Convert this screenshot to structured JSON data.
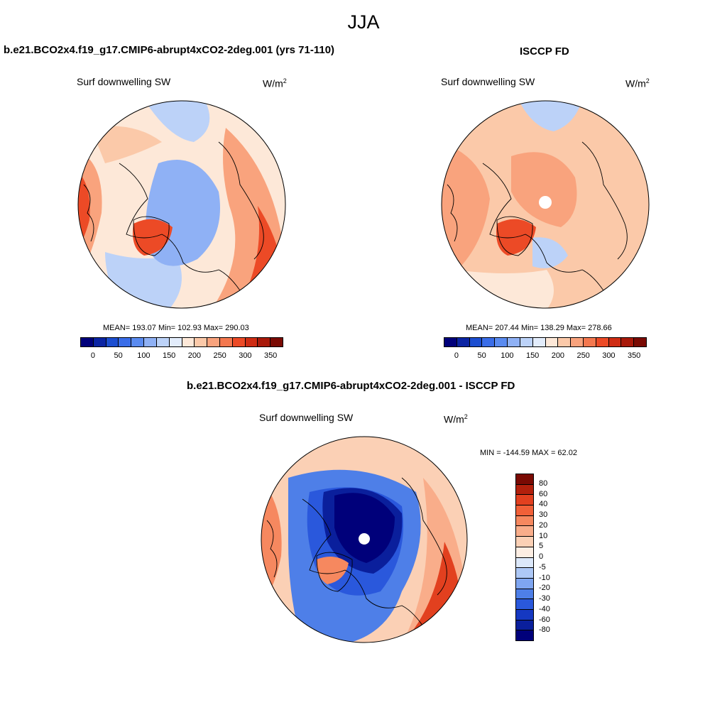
{
  "figure": {
    "main_title": "JJA"
  },
  "panels": {
    "model": {
      "title": "b.e21.BCO2x4.f19_g17.CMIP6-abrupt4xCO2-2deg.001 (yrs 71-110)",
      "variable": "Surf downwelling SW",
      "units_base": "W/m",
      "units_exp": "2",
      "stats": "MEAN= 193.07  Min= 102.93  Max= 290.03"
    },
    "obs": {
      "title": "ISCCP FD",
      "variable": "Surf downwelling SW",
      "units_base": "W/m",
      "units_exp": "2",
      "stats": "MEAN= 207.44  Min= 138.29  Max= 278.66"
    },
    "diff": {
      "title": "b.e21.BCO2x4.f19_g17.CMIP6-abrupt4xCO2-2deg.001 - ISCCP FD",
      "variable": "Surf downwelling SW",
      "units_base": "W/m",
      "units_exp": "2",
      "stats": "MIN = -144.59 MAX =  62.02"
    }
  },
  "chart_data": [
    {
      "type": "map",
      "projection": "north-polar-stereographic",
      "title": "b.e21.BCO2x4.f19_g17.CMIP6-abrupt4xCO2-2deg.001 (yrs 71-110)",
      "variable": "Surf downwelling SW",
      "units": "W/m2",
      "mean": 193.07,
      "min": 102.93,
      "max": 290.03,
      "colorbar_ticks": [
        "0",
        "50",
        "100",
        "150",
        "200",
        "250",
        "300",
        "350"
      ],
      "colorbar_colors": [
        "#00007a",
        "#0b24a3",
        "#1c4ed0",
        "#3a6de8",
        "#5a8bf0",
        "#8fb1f5",
        "#bcd2f8",
        "#e2ecfb",
        "#fde8d8",
        "#fbc9a9",
        "#f9a37d",
        "#f4784f",
        "#ec4a26",
        "#cf2c13",
        "#a8190a",
        "#7a0a03"
      ]
    },
    {
      "type": "map",
      "projection": "north-polar-stereographic",
      "title": "ISCCP FD",
      "variable": "Surf downwelling SW",
      "units": "W/m2",
      "mean": 207.44,
      "min": 138.29,
      "max": 278.66,
      "colorbar_ticks": [
        "0",
        "50",
        "100",
        "150",
        "200",
        "250",
        "300",
        "350"
      ],
      "colorbar_colors": [
        "#00007a",
        "#0b24a3",
        "#1c4ed0",
        "#3a6de8",
        "#5a8bf0",
        "#8fb1f5",
        "#bcd2f8",
        "#e2ecfb",
        "#fde8d8",
        "#fbc9a9",
        "#f9a37d",
        "#f4784f",
        "#ec4a26",
        "#cf2c13",
        "#a8190a",
        "#7a0a03"
      ]
    },
    {
      "type": "map",
      "projection": "north-polar-stereographic",
      "title": "b.e21.BCO2x4.f19_g17.CMIP6-abrupt4xCO2-2deg.001 - ISCCP FD",
      "variable": "Surf downwelling SW",
      "units": "W/m2",
      "min": -144.59,
      "max": 62.02,
      "colorbar_ticks": [
        "80",
        "60",
        "40",
        "30",
        "20",
        "10",
        "5",
        "0",
        "-5",
        "-10",
        "-20",
        "-30",
        "-40",
        "-60",
        "-80"
      ],
      "colorbar_colors": [
        "#7a0a03",
        "#b2200c",
        "#e2401f",
        "#f16038",
        "#f6885f",
        "#f9ad8a",
        "#fbd0b5",
        "#fdeee3",
        "#dce8fa",
        "#adc8f6",
        "#7fa6f1",
        "#4e7fe8",
        "#2a58dc",
        "#1538c2",
        "#0a1f9c",
        "#00007a"
      ]
    }
  ]
}
